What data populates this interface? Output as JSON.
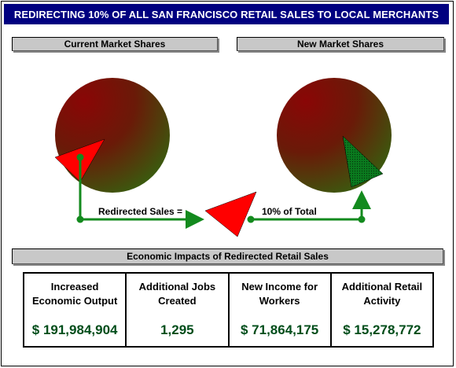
{
  "title": "REDIRECTING 10% OF ALL SAN FRANCISCO RETAIL SALES TO LOCAL MERCHANTS",
  "sections": {
    "current": "Current Market Shares",
    "new": "New Market Shares",
    "impacts": "Economic Impacts of Redirected Retail Sales"
  },
  "flow": {
    "redirected_label": "Redirected Sales =",
    "total_label": "10% of Total",
    "redirected_share_fraction": 0.1
  },
  "impacts": [
    {
      "line1": "Increased",
      "line2": "Economic Output",
      "value": "$ 191,984,904"
    },
    {
      "line1": "Additional Jobs",
      "line2": "Created",
      "value": "1,295"
    },
    {
      "line1": "New Income for",
      "line2": "Workers",
      "value": "$ 71,864,175"
    },
    {
      "line1": "Additional Retail",
      "line2": "Activity",
      "value": "$ 15,278,772"
    }
  ],
  "colors": {
    "title_bg": "#000080",
    "pie_dark": "#7a0a0a",
    "pie_light": "#3f5a10",
    "wedge_red": "#ff0000",
    "wedge_green": "#0a7a1e",
    "arrow": "#138a1e",
    "value_text": "#004d1a"
  }
}
